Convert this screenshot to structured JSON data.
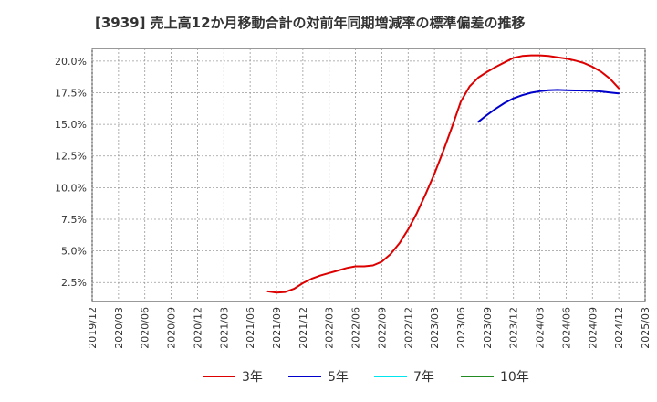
{
  "chart_data": {
    "type": "line",
    "title": "[3939]  売上高12か月移動合計の対前年同期増減率の標準偏差の推移",
    "xlabel": "",
    "ylabel": "",
    "ylim": [
      1.0,
      21.0
    ],
    "y_ticks": [
      2.5,
      5.0,
      7.5,
      10.0,
      12.5,
      15.0,
      17.5,
      20.0
    ],
    "y_tick_labels": [
      "2.5%",
      "5.0%",
      "7.5%",
      "10.0%",
      "12.5%",
      "15.0%",
      "17.5%",
      "20.0%"
    ],
    "x_ticks": [
      "2019/12",
      "2020/03",
      "2020/06",
      "2020/09",
      "2020/12",
      "2021/03",
      "2021/06",
      "2021/09",
      "2021/12",
      "2022/03",
      "2022/06",
      "2022/09",
      "2022/12",
      "2023/03",
      "2023/06",
      "2023/09",
      "2023/12",
      "2024/03",
      "2024/06",
      "2024/09",
      "2024/12",
      "2025/03"
    ],
    "grid": true,
    "legend_position": "bottom",
    "series": [
      {
        "name": "3年",
        "color": "#dd0000",
        "x": [
          "2021/08",
          "2021/09",
          "2021/10",
          "2021/11",
          "2021/12",
          "2022/01",
          "2022/02",
          "2022/03",
          "2022/04",
          "2022/05",
          "2022/06",
          "2022/07",
          "2022/08",
          "2022/09",
          "2022/10",
          "2022/11",
          "2022/12",
          "2023/01",
          "2023/02",
          "2023/03",
          "2023/04",
          "2023/05",
          "2023/06",
          "2023/07",
          "2023/08",
          "2023/09",
          "2023/10",
          "2023/11",
          "2023/12",
          "2024/01",
          "2024/02",
          "2024/03",
          "2024/04",
          "2024/05",
          "2024/06",
          "2024/07",
          "2024/08",
          "2024/09",
          "2024/10",
          "2024/11",
          "2024/12"
        ],
        "values": [
          1.8,
          1.7,
          1.75,
          2.0,
          2.45,
          2.8,
          3.05,
          3.25,
          3.45,
          3.65,
          3.78,
          3.78,
          3.85,
          4.15,
          4.75,
          5.6,
          6.7,
          8.0,
          9.5,
          11.1,
          12.9,
          14.8,
          16.8,
          18.0,
          18.7,
          19.15,
          19.55,
          19.9,
          20.25,
          20.4,
          20.45,
          20.45,
          20.4,
          20.3,
          20.2,
          20.05,
          19.85,
          19.55,
          19.15,
          18.6,
          17.85
        ]
      },
      {
        "name": "5年",
        "color": "#0000cc",
        "x": [
          "2023/08",
          "2023/09",
          "2023/10",
          "2023/11",
          "2023/12",
          "2024/01",
          "2024/02",
          "2024/03",
          "2024/04",
          "2024/05",
          "2024/06",
          "2024/07",
          "2024/08",
          "2024/09",
          "2024/10",
          "2024/11",
          "2024/12"
        ],
        "values": [
          15.2,
          15.75,
          16.25,
          16.7,
          17.05,
          17.3,
          17.5,
          17.62,
          17.7,
          17.72,
          17.7,
          17.68,
          17.67,
          17.65,
          17.6,
          17.52,
          17.45
        ]
      },
      {
        "name": "7年",
        "color": "#00e5ee",
        "x": [],
        "values": []
      },
      {
        "name": "10年",
        "color": "#228b22",
        "x": [],
        "values": []
      }
    ]
  }
}
